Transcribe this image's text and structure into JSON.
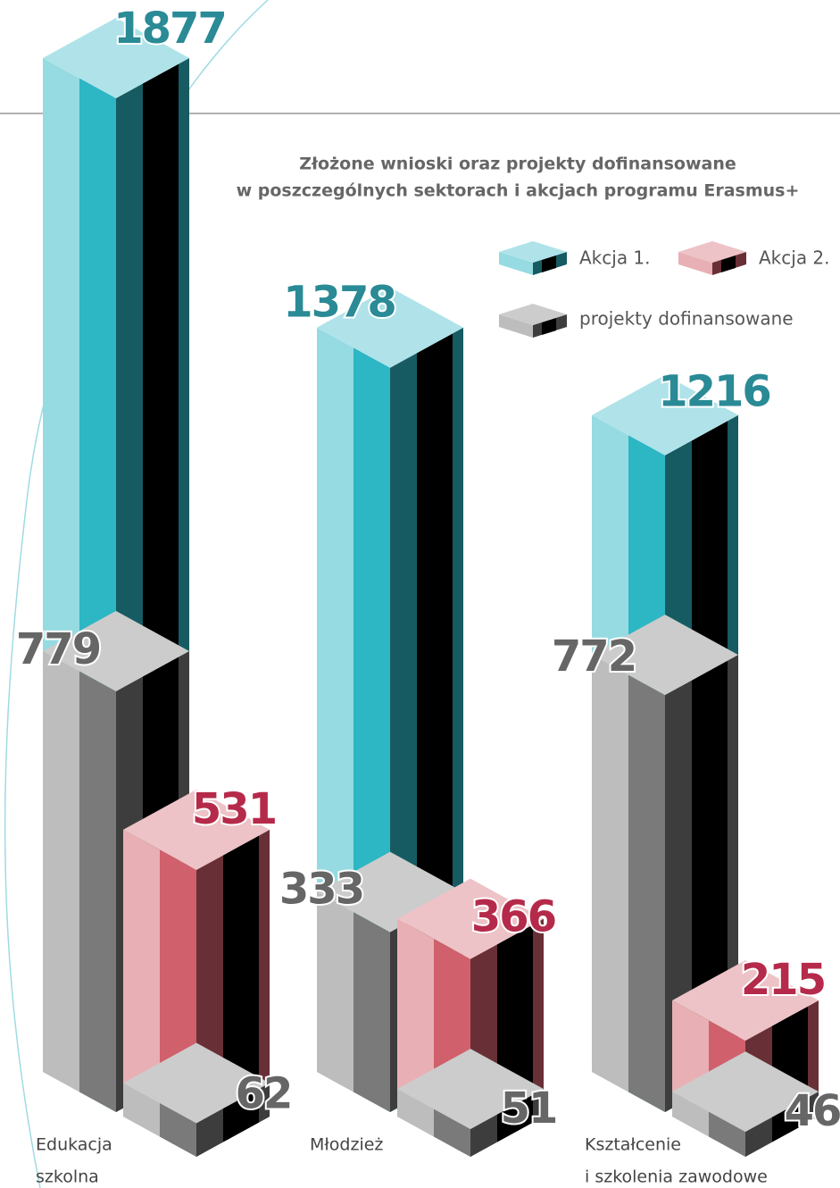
{
  "chart_data": {
    "type": "bar3d",
    "title": [
      "Złożone wnioski oraz projekty dofinansowane",
      "w poszczególnych sektorach i akcjach programu Erasmus+"
    ],
    "categories": [
      [
        "Edukacja",
        "szkolna"
      ],
      [
        "Młodzież"
      ],
      [
        "Kształcenie",
        "i szkolenia zawodowe"
      ]
    ],
    "series": [
      {
        "name": "Akcja 1.",
        "color": "#2db6c4",
        "label_color": "#2a8a96",
        "values": [
          1877,
          1378,
          1216
        ],
        "funded": [
          779,
          333,
          772
        ]
      },
      {
        "name": "Akcja 2.",
        "color": "#d0606b",
        "label_color": "#b52a4a",
        "values": [
          531,
          366,
          215
        ],
        "funded": [
          62,
          51,
          46
        ]
      }
    ],
    "funded_name": "projekty dofinansowane",
    "funded_color": "#7a7a7a",
    "funded_label_color": "#666666",
    "ylim": [
      0,
      1877
    ]
  }
}
